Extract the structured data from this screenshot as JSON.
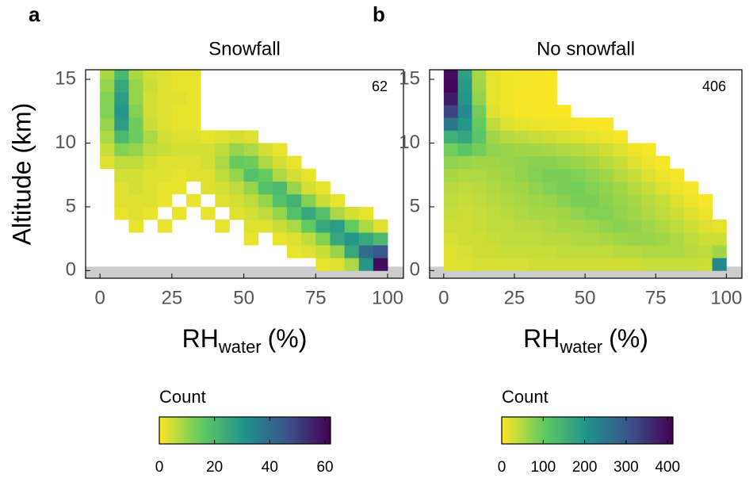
{
  "chart_data": [
    {
      "type": "heatmap",
      "panel": "a",
      "title": "Snowfall",
      "annotation": "62",
      "ylabel": "Altitude (km)",
      "xlabel": [
        "RH",
        "water",
        "(%)"
      ],
      "x_bins": [
        0,
        5,
        10,
        15,
        20,
        25,
        30,
        35,
        40,
        45,
        50,
        55,
        60,
        65,
        70,
        75,
        80,
        85,
        90,
        95,
        100
      ],
      "y_bins": [
        0,
        1,
        2,
        3,
        4,
        5,
        6,
        7,
        8,
        9,
        10,
        11,
        12,
        13,
        14,
        15,
        16
      ],
      "xlim": [
        -5,
        105.5
      ],
      "ylim": [
        -0.6,
        15.75
      ],
      "xticks": [
        0,
        25,
        50,
        75,
        100
      ],
      "yticks": [
        0,
        5,
        10,
        15
      ],
      "values": [
        [
          null,
          null,
          null,
          null,
          null,
          null,
          null,
          null,
          null,
          null,
          null,
          null,
          null,
          null,
          null,
          2,
          3,
          8,
          30,
          60
        ],
        [
          null,
          null,
          null,
          null,
          null,
          null,
          null,
          null,
          null,
          null,
          null,
          null,
          null,
          2,
          3,
          5,
          10,
          25,
          40,
          45
        ],
        [
          null,
          null,
          null,
          null,
          null,
          null,
          null,
          null,
          null,
          null,
          2,
          null,
          2,
          3,
          6,
          12,
          25,
          30,
          25,
          20
        ],
        [
          null,
          null,
          2,
          null,
          2,
          null,
          null,
          null,
          2,
          null,
          3,
          3,
          5,
          8,
          15,
          25,
          28,
          15,
          8,
          3
        ],
        [
          null,
          2,
          3,
          2,
          null,
          2,
          null,
          2,
          null,
          3,
          4,
          6,
          10,
          18,
          25,
          18,
          8,
          4,
          2,
          null
        ],
        [
          null,
          3,
          3,
          3,
          2,
          null,
          2,
          null,
          3,
          4,
          6,
          10,
          18,
          22,
          12,
          5,
          2,
          null,
          null,
          null
        ],
        [
          null,
          3,
          4,
          3,
          2,
          2,
          null,
          3,
          4,
          6,
          10,
          18,
          20,
          10,
          4,
          2,
          null,
          null,
          null,
          null
        ],
        [
          null,
          4,
          4,
          3,
          3,
          2,
          3,
          3,
          6,
          10,
          18,
          15,
          8,
          4,
          2,
          null,
          null,
          null,
          null,
          null
        ],
        [
          3,
          6,
          6,
          4,
          3,
          3,
          3,
          4,
          8,
          15,
          14,
          8,
          4,
          2,
          null,
          null,
          null,
          null,
          null,
          null
        ],
        [
          5,
          12,
          10,
          6,
          5,
          4,
          4,
          4,
          6,
          10,
          8,
          4,
          2,
          null,
          null,
          null,
          null,
          null,
          null,
          null
        ],
        [
          8,
          20,
          14,
          8,
          4,
          3,
          3,
          2,
          3,
          4,
          3,
          null,
          null,
          null,
          null,
          null,
          null,
          null,
          null,
          null
        ],
        [
          10,
          28,
          14,
          5,
          3,
          2,
          2,
          null,
          null,
          null,
          null,
          null,
          null,
          null,
          null,
          null,
          null,
          null,
          null,
          null
        ],
        [
          12,
          30,
          12,
          4,
          3,
          2,
          2,
          null,
          null,
          null,
          null,
          null,
          null,
          null,
          null,
          null,
          null,
          null,
          null,
          null
        ],
        [
          12,
          28,
          10,
          4,
          3,
          3,
          2,
          null,
          null,
          null,
          null,
          null,
          null,
          null,
          null,
          null,
          null,
          null,
          null,
          null
        ],
        [
          10,
          25,
          10,
          5,
          3,
          2,
          2,
          null,
          null,
          null,
          null,
          null,
          null,
          null,
          null,
          null,
          null,
          null,
          null,
          null
        ],
        [
          8,
          20,
          8,
          4,
          3,
          2,
          2,
          null,
          null,
          null,
          null,
          null,
          null,
          null,
          null,
          null,
          null,
          null,
          null,
          null
        ]
      ],
      "colorbar": {
        "label": "Count",
        "clim": [
          0,
          62
        ],
        "ticks": [
          0,
          20,
          40,
          60
        ],
        "colormap": [
          "#fde725",
          "#5ec962",
          "#21918c",
          "#3b528b",
          "#440154"
        ]
      }
    },
    {
      "type": "heatmap",
      "panel": "b",
      "title": "No snowfall",
      "annotation": "406",
      "xlabel": [
        "RH",
        "water",
        "(%)"
      ],
      "x_bins": [
        0,
        5,
        10,
        15,
        20,
        25,
        30,
        35,
        40,
        45,
        50,
        55,
        60,
        65,
        70,
        75,
        80,
        85,
        90,
        95,
        100
      ],
      "y_bins": [
        0,
        1,
        2,
        3,
        4,
        5,
        6,
        7,
        8,
        9,
        10,
        11,
        12,
        13,
        14,
        15,
        16
      ],
      "xlim": [
        -5,
        105.5
      ],
      "ylim": [
        -0.6,
        15.75
      ],
      "xticks": [
        0,
        25,
        50,
        75,
        100
      ],
      "yticks": [
        0,
        5,
        10,
        15
      ],
      "values": [
        [
          20,
          20,
          25,
          25,
          25,
          25,
          30,
          30,
          30,
          30,
          30,
          30,
          30,
          30,
          35,
          35,
          35,
          35,
          30,
          220
        ],
        [
          20,
          25,
          30,
          30,
          35,
          35,
          35,
          35,
          40,
          40,
          40,
          40,
          45,
          45,
          50,
          50,
          50,
          45,
          40,
          60
        ],
        [
          25,
          30,
          30,
          35,
          40,
          40,
          40,
          45,
          45,
          50,
          50,
          55,
          60,
          65,
          65,
          60,
          50,
          40,
          30,
          30
        ],
        [
          30,
          30,
          35,
          40,
          40,
          45,
          45,
          50,
          55,
          55,
          60,
          70,
          75,
          70,
          60,
          50,
          40,
          30,
          20,
          15
        ],
        [
          35,
          30,
          35,
          40,
          45,
          50,
          55,
          55,
          60,
          70,
          80,
          80,
          70,
          60,
          50,
          40,
          30,
          20,
          10,
          null
        ],
        [
          40,
          35,
          40,
          45,
          50,
          55,
          60,
          65,
          75,
          85,
          85,
          75,
          65,
          55,
          45,
          35,
          20,
          10,
          5,
          null
        ],
        [
          45,
          40,
          45,
          50,
          55,
          60,
          70,
          80,
          85,
          90,
          80,
          70,
          60,
          45,
          35,
          20,
          10,
          5,
          null,
          null
        ],
        [
          55,
          50,
          50,
          55,
          60,
          70,
          80,
          85,
          85,
          80,
          70,
          60,
          45,
          35,
          20,
          10,
          5,
          null,
          null,
          null
        ],
        [
          70,
          65,
          60,
          60,
          65,
          70,
          75,
          75,
          70,
          65,
          55,
          45,
          35,
          20,
          10,
          5,
          null,
          null,
          null,
          null
        ],
        [
          90,
          110,
          90,
          70,
          65,
          60,
          60,
          55,
          50,
          45,
          40,
          30,
          20,
          10,
          5,
          null,
          null,
          null,
          null,
          null
        ],
        [
          150,
          170,
          110,
          60,
          45,
          40,
          35,
          30,
          25,
          20,
          15,
          10,
          5,
          null,
          null,
          null,
          null,
          null,
          null,
          null
        ],
        [
          250,
          200,
          100,
          40,
          20,
          15,
          12,
          10,
          8,
          6,
          4,
          2,
          null,
          null,
          null,
          null,
          null,
          null,
          null,
          null
        ],
        [
          330,
          220,
          90,
          20,
          10,
          5,
          4,
          3,
          2,
          null,
          null,
          null,
          null,
          null,
          null,
          null,
          null,
          null,
          null,
          null
        ],
        [
          380,
          200,
          70,
          15,
          8,
          4,
          3,
          2,
          null,
          null,
          null,
          null,
          null,
          null,
          null,
          null,
          null,
          null,
          null,
          null
        ],
        [
          406,
          190,
          60,
          15,
          8,
          5,
          3,
          2,
          null,
          null,
          null,
          null,
          null,
          null,
          null,
          null,
          null,
          null,
          null,
          null
        ],
        [
          400,
          180,
          55,
          15,
          8,
          5,
          4,
          3,
          null,
          null,
          null,
          null,
          null,
          null,
          null,
          null,
          null,
          null,
          null,
          null
        ]
      ],
      "colorbar": {
        "label": "Count",
        "clim": [
          0,
          413
        ],
        "ticks": [
          0,
          100,
          200,
          300,
          400
        ],
        "colormap": [
          "#fde725",
          "#5ec962",
          "#21918c",
          "#3b528b",
          "#440154"
        ]
      }
    }
  ]
}
